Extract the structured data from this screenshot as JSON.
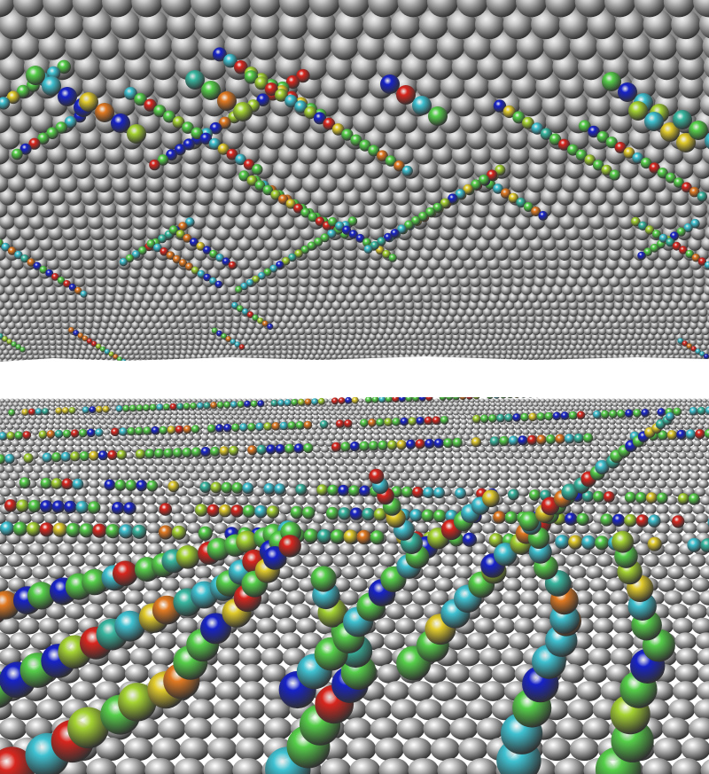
{
  "figure": {
    "panels": [
      {
        "id": "top",
        "subject": "crystal-surface-underside-view"
      },
      {
        "id": "bottom",
        "subject": "crystal-surface-top-view"
      }
    ]
  },
  "colors": {
    "background": "#ffffff",
    "atom_base": "#c9c9c9",
    "atom_shadow": "#7a7a7a",
    "palette": {
      "blue": "#1622c8",
      "cyan": "#3fc2d2",
      "teal": "#38b7a0",
      "green": "#56d04a",
      "yellowgreen": "#a6d432",
      "yellow": "#e2cc2c",
      "orange": "#e27a22",
      "red": "#d8261e"
    }
  }
}
